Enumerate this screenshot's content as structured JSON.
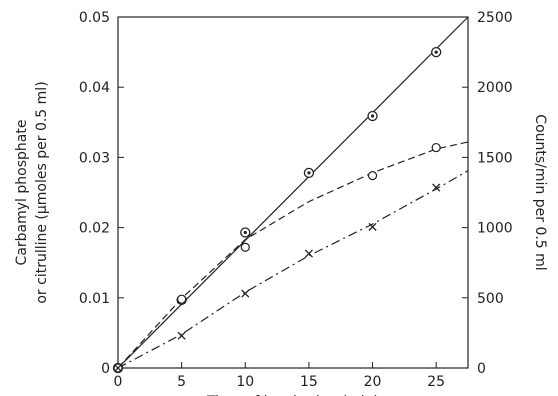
{
  "chart_data": {
    "type": "scatter",
    "title": "",
    "xlabel": "Time of incubation (min)",
    "ylabel": [
      "Carbamyl phosphate",
      "or citrulline (µmoles per 0.5 ml)"
    ],
    "y2label": "Counts/min per 0.5 ml",
    "xlim": [
      0,
      27.5
    ],
    "ylim": [
      0,
      0.05
    ],
    "y2lim": [
      0,
      2500
    ],
    "x_ticks": [
      0,
      5,
      10,
      15,
      20,
      25
    ],
    "x_tick_labels": [
      "0",
      "5",
      "10",
      "15",
      "20",
      "25"
    ],
    "y_ticks": [
      0,
      0.01,
      0.02,
      0.03,
      0.04,
      0.05
    ],
    "y_tick_labels": [
      "0",
      "0.01",
      "0.02",
      "0.03",
      "0.04",
      "0.05"
    ],
    "y2_ticks": [
      0,
      500,
      1000,
      1500,
      2000,
      2500
    ],
    "y2_tick_labels": [
      "0",
      "500",
      "1000",
      "1500",
      "2000",
      "2500"
    ],
    "grid": false,
    "legend": "none",
    "series": [
      {
        "axis": "y2",
        "marker": "circle-dot",
        "line_style": "solid",
        "x": [
          0,
          5,
          10,
          15,
          20,
          25
        ],
        "y": [
          0,
          485,
          965,
          1390,
          1795,
          2250
        ],
        "line": [
          [
            0,
            0
          ],
          [
            27.5,
            2500
          ]
        ]
      },
      {
        "axis": "y",
        "marker": "circle",
        "line_style": "dashed",
        "x": [
          0,
          5,
          10,
          20,
          25
        ],
        "y": [
          0,
          0.0098,
          0.0172,
          0.0274,
          0.0314
        ],
        "line": [
          [
            0,
            0
          ],
          [
            5,
            0.0099
          ],
          [
            10,
            0.0183
          ],
          [
            15,
            0.0237
          ],
          [
            20,
            0.0278
          ],
          [
            25,
            0.0312
          ],
          [
            27.5,
            0.0322
          ]
        ]
      },
      {
        "axis": "y",
        "marker": "x",
        "line_style": "dash-dot",
        "x": [
          0,
          5,
          10,
          15,
          20,
          25
        ],
        "y": [
          0,
          0.0046,
          0.0106,
          0.0163,
          0.0201,
          0.0257
        ],
        "line": [
          [
            0,
            0
          ],
          [
            5,
            0.0048
          ],
          [
            10,
            0.0108
          ],
          [
            15,
            0.016
          ],
          [
            20,
            0.0205
          ],
          [
            25,
            0.0255
          ],
          [
            27.5,
            0.0281
          ]
        ]
      }
    ]
  }
}
